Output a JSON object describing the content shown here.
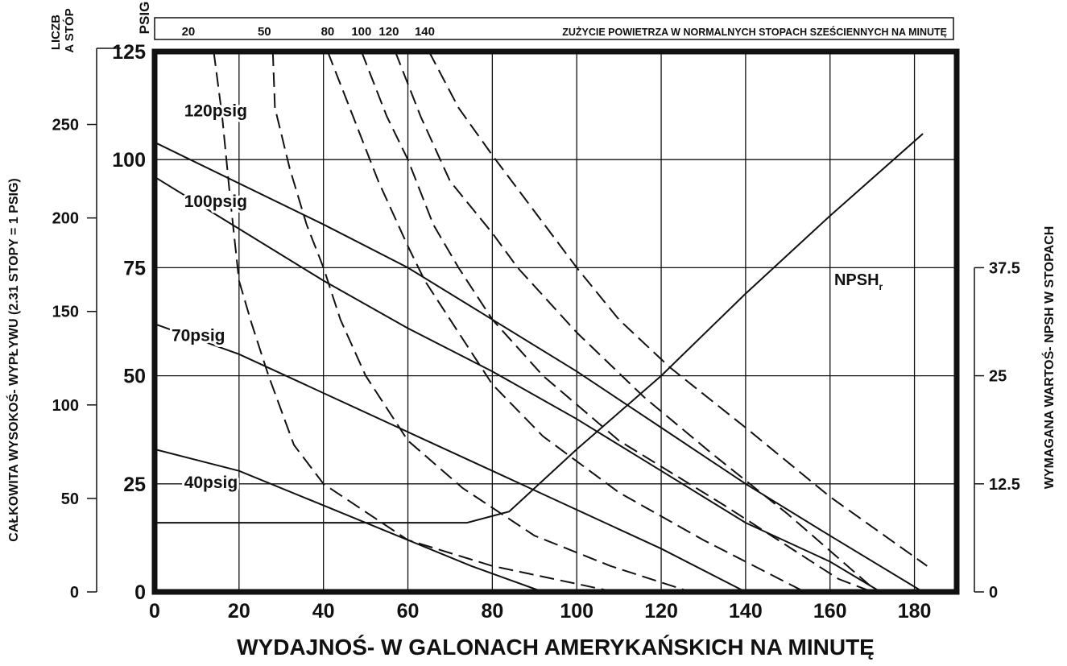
{
  "chart_data": {
    "type": "line",
    "xlabel": "WYDAJNOŚ- W GALONACH AMERYKAŃSKICH NA MINUTĘ",
    "ylabel_left_feet": "CAŁKOWITA WYSOKOŚ- WYPŁYWU (2.31 STOPY = 1 PSIG)",
    "ylabel_right": "WYMAGANA WARTOŚ- NPSH W STOPACH",
    "unit_left_feet": "LICZB A STÓP",
    "unit_left_psig": "PSIG",
    "top_scale_title": "ZUŻYCIE POWIETRZA W NORMALNYCH STOPACH SZEŚCIENNYCH NA MINUTĘ",
    "xlim": [
      0,
      190
    ],
    "ylim_psig": [
      0,
      125
    ],
    "ylim_feet": [
      0,
      289
    ],
    "ylim_npsh_ft": [
      0,
      62.5
    ],
    "x_ticks": [
      0,
      20,
      40,
      60,
      80,
      100,
      120,
      140,
      160,
      180
    ],
    "x_tick_labels": [
      "0",
      "20",
      "40",
      "60",
      "80",
      "100",
      "120",
      "140",
      "160",
      "180"
    ],
    "y_ticks_psig": [
      0,
      25,
      50,
      75,
      100,
      125
    ],
    "y_tick_labels_psig": [
      "0",
      "25",
      "50",
      "75",
      "100",
      "125"
    ],
    "y_ticks_feet": [
      0,
      50,
      100,
      150,
      200,
      250
    ],
    "y_tick_labels_feet": [
      "0",
      "50",
      "100",
      "150",
      "200",
      "250"
    ],
    "y_ticks_npsh": [
      0,
      12.5,
      25,
      37.5
    ],
    "y_tick_labels_npsh": [
      "0",
      "12.5",
      "25",
      "37.5"
    ],
    "x_grid": [
      20,
      40,
      60,
      80,
      100,
      120,
      140,
      160,
      180
    ],
    "y_grid_psig": [
      25,
      50,
      75,
      100
    ],
    "grid": true,
    "top_scale": [
      {
        "label": "20",
        "x": 8
      },
      {
        "label": "50",
        "x": 26
      },
      {
        "label": "80",
        "x": 41
      },
      {
        "label": "100",
        "x": 49
      },
      {
        "label": "120",
        "x": 55.5
      },
      {
        "label": "140",
        "x": 64
      }
    ],
    "pressure_curves": [
      {
        "name": "120psig",
        "points": [
          [
            0,
            104
          ],
          [
            40,
            85
          ],
          [
            60,
            75
          ],
          [
            80,
            63
          ],
          [
            100,
            51
          ],
          [
            120,
            38
          ],
          [
            140,
            25
          ],
          [
            160,
            13
          ],
          [
            182,
            0
          ]
        ]
      },
      {
        "name": "100psig",
        "points": [
          [
            0,
            96
          ],
          [
            40,
            72
          ],
          [
            60,
            61
          ],
          [
            80,
            51
          ],
          [
            100,
            40
          ],
          [
            120,
            28
          ],
          [
            140,
            16
          ],
          [
            160,
            7
          ],
          [
            172,
            0
          ]
        ]
      },
      {
        "name": "70psig",
        "points": [
          [
            0,
            62
          ],
          [
            20,
            55
          ],
          [
            40,
            46
          ],
          [
            60,
            37
          ],
          [
            80,
            28
          ],
          [
            100,
            19
          ],
          [
            120,
            10
          ],
          [
            140,
            0
          ]
        ]
      },
      {
        "name": "40psig",
        "points": [
          [
            0,
            33
          ],
          [
            20,
            28
          ],
          [
            40,
            20
          ],
          [
            60,
            12
          ],
          [
            75,
            6
          ],
          [
            92,
            0
          ]
        ]
      }
    ],
    "pressure_labels": [
      {
        "text": "120psig",
        "x": 7,
        "y": 110
      },
      {
        "text": "100psig",
        "x": 7,
        "y": 89
      },
      {
        "text": "70psig",
        "x": 4,
        "y": 58
      },
      {
        "text": "40psig",
        "x": 7,
        "y": 24
      }
    ],
    "air_consumption_curves": [
      {
        "name": "20",
        "points": [
          [
            14,
            125
          ],
          [
            16,
            110
          ],
          [
            18,
            90
          ],
          [
            20,
            72
          ],
          [
            23,
            62
          ],
          [
            27,
            50
          ],
          [
            33,
            34
          ],
          [
            40,
            25
          ],
          [
            60,
            12
          ],
          [
            80,
            6
          ],
          [
            109,
            0
          ]
        ]
      },
      {
        "name": "50",
        "points": [
          [
            28,
            125
          ],
          [
            28.5,
            112
          ],
          [
            32,
            98
          ],
          [
            36,
            85
          ],
          [
            40,
            75
          ],
          [
            44,
            63
          ],
          [
            50,
            50
          ],
          [
            60,
            35
          ],
          [
            73,
            24
          ],
          [
            90,
            13
          ],
          [
            108,
            6
          ],
          [
            127,
            0
          ]
        ]
      },
      {
        "name": "80",
        "points": [
          [
            41,
            125
          ],
          [
            47,
            110
          ],
          [
            53,
            95
          ],
          [
            60,
            80
          ],
          [
            64,
            72
          ],
          [
            72,
            60
          ],
          [
            80,
            48
          ],
          [
            92,
            36
          ],
          [
            110,
            23
          ],
          [
            130,
            12
          ],
          [
            154,
            0
          ]
        ]
      },
      {
        "name": "100",
        "points": [
          [
            49,
            125
          ],
          [
            55,
            110
          ],
          [
            60,
            100
          ],
          [
            66,
            85
          ],
          [
            72,
            75
          ],
          [
            80,
            63
          ],
          [
            92,
            50
          ],
          [
            110,
            35
          ],
          [
            135,
            20
          ],
          [
            162,
            3
          ],
          [
            170,
            0
          ]
        ]
      },
      {
        "name": "120",
        "points": [
          [
            57,
            125
          ],
          [
            63,
            110
          ],
          [
            70,
            95
          ],
          [
            80,
            83
          ],
          [
            86,
            75
          ],
          [
            100,
            60
          ],
          [
            116,
            45
          ],
          [
            132,
            32
          ],
          [
            150,
            18
          ],
          [
            170,
            1
          ]
        ]
      },
      {
        "name": "140",
        "points": [
          [
            65,
            125
          ],
          [
            72,
            112
          ],
          [
            80,
            101
          ],
          [
            90,
            88
          ],
          [
            100,
            75
          ],
          [
            110,
            63
          ],
          [
            122,
            52
          ],
          [
            140,
            38
          ],
          [
            160,
            22
          ],
          [
            183,
            6
          ]
        ]
      }
    ],
    "npsh_curve": {
      "name": "NPSH",
      "points_ft": [
        [
          0,
          8
        ],
        [
          74,
          8
        ],
        [
          84,
          9.3
        ],
        [
          100,
          16.5
        ],
        [
          120,
          25
        ],
        [
          140,
          34.5
        ],
        [
          160,
          43.5
        ],
        [
          182,
          53
        ]
      ]
    },
    "npsh_label": {
      "text": "NPSH",
      "subscript": "r",
      "x": 161,
      "y": 71
    }
  }
}
